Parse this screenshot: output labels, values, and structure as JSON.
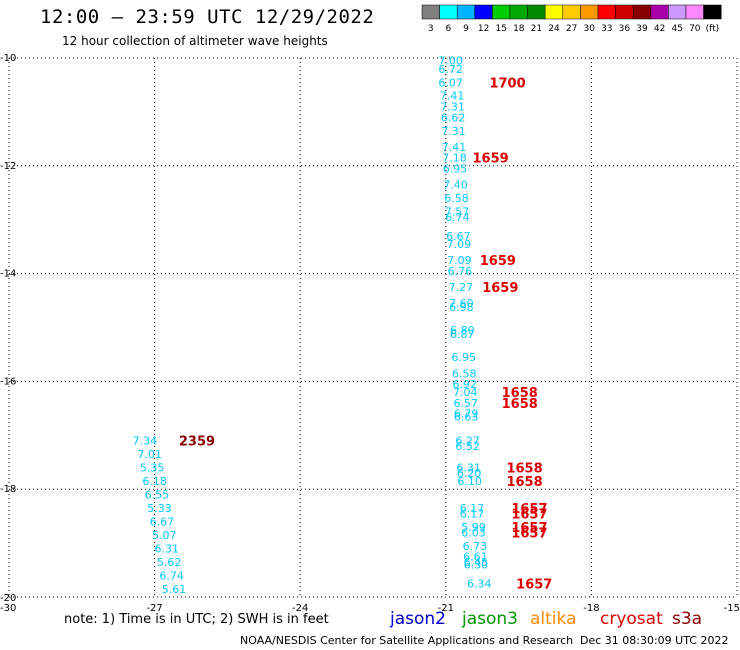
{
  "header": {
    "title": "12:00 – 23:59 UTC 12/29/2022",
    "subtitle": "12 hour collection of altimeter wave heights"
  },
  "colorbar": {
    "labels": [
      "3",
      "6",
      "9",
      "12",
      "15",
      "18",
      "21",
      "24",
      "27",
      "30",
      "33",
      "36",
      "39",
      "42",
      "45",
      "70",
      "(ft)"
    ],
    "colors": [
      "#808080",
      "#00ffff",
      "#00b4ff",
      "#0000ff",
      "#00cc00",
      "#00aa00",
      "#008800",
      "#ffff00",
      "#ffcc00",
      "#ff9900",
      "#ff0000",
      "#cc0000",
      "#880000",
      "#aa00aa",
      "#cc99ff",
      "#ff88ff",
      "#000000"
    ]
  },
  "note": "note: 1) Time is in UTC; 2) SWH is in feet",
  "missions": [
    {
      "name": "jason2",
      "color": "#0000cc"
    },
    {
      "name": "jason3",
      "color": "#009900"
    },
    {
      "name": "altika",
      "color": "#ff8800"
    },
    {
      "name": "cryosat",
      "color": "#dd0000"
    },
    {
      "name": "s3a",
      "color": "#880000"
    }
  ],
  "footer": {
    "left": "NOAA/NESDIS Center for Satellite Applications and Research",
    "right": "Dec 31 08:30:09 UTC 2022"
  },
  "chart_data": {
    "type": "scatter",
    "xlim": [
      -30,
      -15
    ],
    "ylim": [
      -20,
      -10
    ],
    "x_ticks": [
      -30,
      -27,
      -24,
      -21,
      -18,
      -15
    ],
    "y_ticks": [
      -10,
      -12,
      -14,
      -16,
      -18,
      -20
    ],
    "grid": true,
    "value_color": "#00c8ff",
    "series": [
      {
        "points": [
          {
            "x": -20.9,
            "y": -10.05,
            "v": "7.00"
          },
          {
            "x": -20.9,
            "y": -10.2,
            "v": "6.72"
          },
          {
            "x": -20.9,
            "y": -10.45,
            "v": "6.07"
          },
          {
            "x": -20.87,
            "y": -10.7,
            "v": "7.41"
          },
          {
            "x": -20.86,
            "y": -10.9,
            "v": "7.31"
          },
          {
            "x": -20.85,
            "y": -11.1,
            "v": "6.62"
          },
          {
            "x": -20.84,
            "y": -11.35,
            "v": "7.31"
          },
          {
            "x": -20.83,
            "y": -11.65,
            "v": "7.41"
          },
          {
            "x": -20.82,
            "y": -11.85,
            "v": "7.18"
          },
          {
            "x": -20.81,
            "y": -12.05,
            "v": "6.95"
          },
          {
            "x": -20.8,
            "y": -12.35,
            "v": "7.40"
          },
          {
            "x": -20.78,
            "y": -12.6,
            "v": "6.58"
          },
          {
            "x": -20.77,
            "y": -12.85,
            "v": "7.57"
          },
          {
            "x": -20.76,
            "y": -12.95,
            "v": "6.74"
          },
          {
            "x": -20.74,
            "y": -13.3,
            "v": "6.67"
          },
          {
            "x": -20.73,
            "y": -13.45,
            "v": "7.09"
          },
          {
            "x": -20.72,
            "y": -13.75,
            "v": "7.09"
          },
          {
            "x": -20.71,
            "y": -13.95,
            "v": "6.76"
          },
          {
            "x": -20.69,
            "y": -14.25,
            "v": "7.27"
          },
          {
            "x": -20.68,
            "y": -14.55,
            "v": "7.60"
          },
          {
            "x": -20.68,
            "y": -14.62,
            "v": "6.98"
          },
          {
            "x": -20.66,
            "y": -15.05,
            "v": "6.80"
          },
          {
            "x": -20.66,
            "y": -15.12,
            "v": "6.87"
          },
          {
            "x": -20.63,
            "y": -15.55,
            "v": "6.95"
          },
          {
            "x": -20.62,
            "y": -15.85,
            "v": "6.58"
          },
          {
            "x": -20.61,
            "y": -16.05,
            "v": "6.92"
          },
          {
            "x": -20.6,
            "y": -16.2,
            "v": "7.04"
          },
          {
            "x": -20.59,
            "y": -16.4,
            "v": "6.57"
          },
          {
            "x": -20.58,
            "y": -16.6,
            "v": "6.79"
          },
          {
            "x": -20.58,
            "y": -16.65,
            "v": "6.63"
          },
          {
            "x": -20.55,
            "y": -17.1,
            "v": "6.27"
          },
          {
            "x": -20.55,
            "y": -17.2,
            "v": "6.52"
          },
          {
            "x": -20.53,
            "y": -17.6,
            "v": "6.31"
          },
          {
            "x": -20.52,
            "y": -17.7,
            "v": "6.20"
          },
          {
            "x": -20.51,
            "y": -17.85,
            "v": "6.10"
          },
          {
            "x": -20.46,
            "y": -18.35,
            "v": "6.17"
          },
          {
            "x": -20.46,
            "y": -18.45,
            "v": "6.17"
          },
          {
            "x": -20.43,
            "y": -18.7,
            "v": "5.99"
          },
          {
            "x": -20.43,
            "y": -18.8,
            "v": "6.03"
          },
          {
            "x": -20.4,
            "y": -19.05,
            "v": "6.73"
          },
          {
            "x": -20.39,
            "y": -19.25,
            "v": "6.61"
          },
          {
            "x": -20.38,
            "y": -19.35,
            "v": "6.45"
          },
          {
            "x": -20.38,
            "y": -19.4,
            "v": "6.30"
          },
          {
            "x": -20.31,
            "y": -19.75,
            "v": "6.34"
          },
          {
            "x": -27.2,
            "y": -17.1,
            "v": "7.34"
          },
          {
            "x": -27.1,
            "y": -17.35,
            "v": "7.01"
          },
          {
            "x": -27.05,
            "y": -17.6,
            "v": "5.35"
          },
          {
            "x": -27.0,
            "y": -17.85,
            "v": "6.18"
          },
          {
            "x": -26.95,
            "y": -18.1,
            "v": "6.55"
          },
          {
            "x": -26.9,
            "y": -18.35,
            "v": "5.33"
          },
          {
            "x": -26.85,
            "y": -18.6,
            "v": "6.67"
          },
          {
            "x": -26.8,
            "y": -18.85,
            "v": "5.07"
          },
          {
            "x": -26.75,
            "y": -19.1,
            "v": "6.31"
          },
          {
            "x": -26.7,
            "y": -19.35,
            "v": "5.62"
          },
          {
            "x": -26.65,
            "y": -19.6,
            "v": "6.74"
          },
          {
            "x": -26.6,
            "y": -19.85,
            "v": "5.61"
          }
        ]
      }
    ],
    "time_labels": [
      {
        "x": -20.1,
        "y": -10.45,
        "t": "1700",
        "color": "#dd0000"
      },
      {
        "x": -20.45,
        "y": -11.85,
        "t": "1659",
        "color": "#dd0000"
      },
      {
        "x": -20.3,
        "y": -13.75,
        "t": "1659",
        "color": "#dd0000"
      },
      {
        "x": -20.25,
        "y": -14.25,
        "t": "1659",
        "color": "#dd0000"
      },
      {
        "x": -19.85,
        "y": -16.2,
        "t": "1658",
        "color": "#dd0000"
      },
      {
        "x": -19.85,
        "y": -16.4,
        "t": "1658",
        "color": "#dd0000"
      },
      {
        "x": -19.75,
        "y": -17.6,
        "t": "1658",
        "color": "#dd0000"
      },
      {
        "x": -19.75,
        "y": -17.85,
        "t": "1658",
        "color": "#dd0000"
      },
      {
        "x": -19.65,
        "y": -18.35,
        "t": "1657",
        "color": "#dd0000"
      },
      {
        "x": -19.65,
        "y": -18.45,
        "t": "1657",
        "color": "#dd0000"
      },
      {
        "x": -19.65,
        "y": -18.7,
        "t": "1657",
        "color": "#dd0000"
      },
      {
        "x": -19.65,
        "y": -18.8,
        "t": "1657",
        "color": "#dd0000"
      },
      {
        "x": -19.55,
        "y": -19.75,
        "t": "1657",
        "color": "#dd0000"
      },
      {
        "x": -26.5,
        "y": -17.1,
        "t": "2359",
        "color": "#880000"
      }
    ]
  }
}
